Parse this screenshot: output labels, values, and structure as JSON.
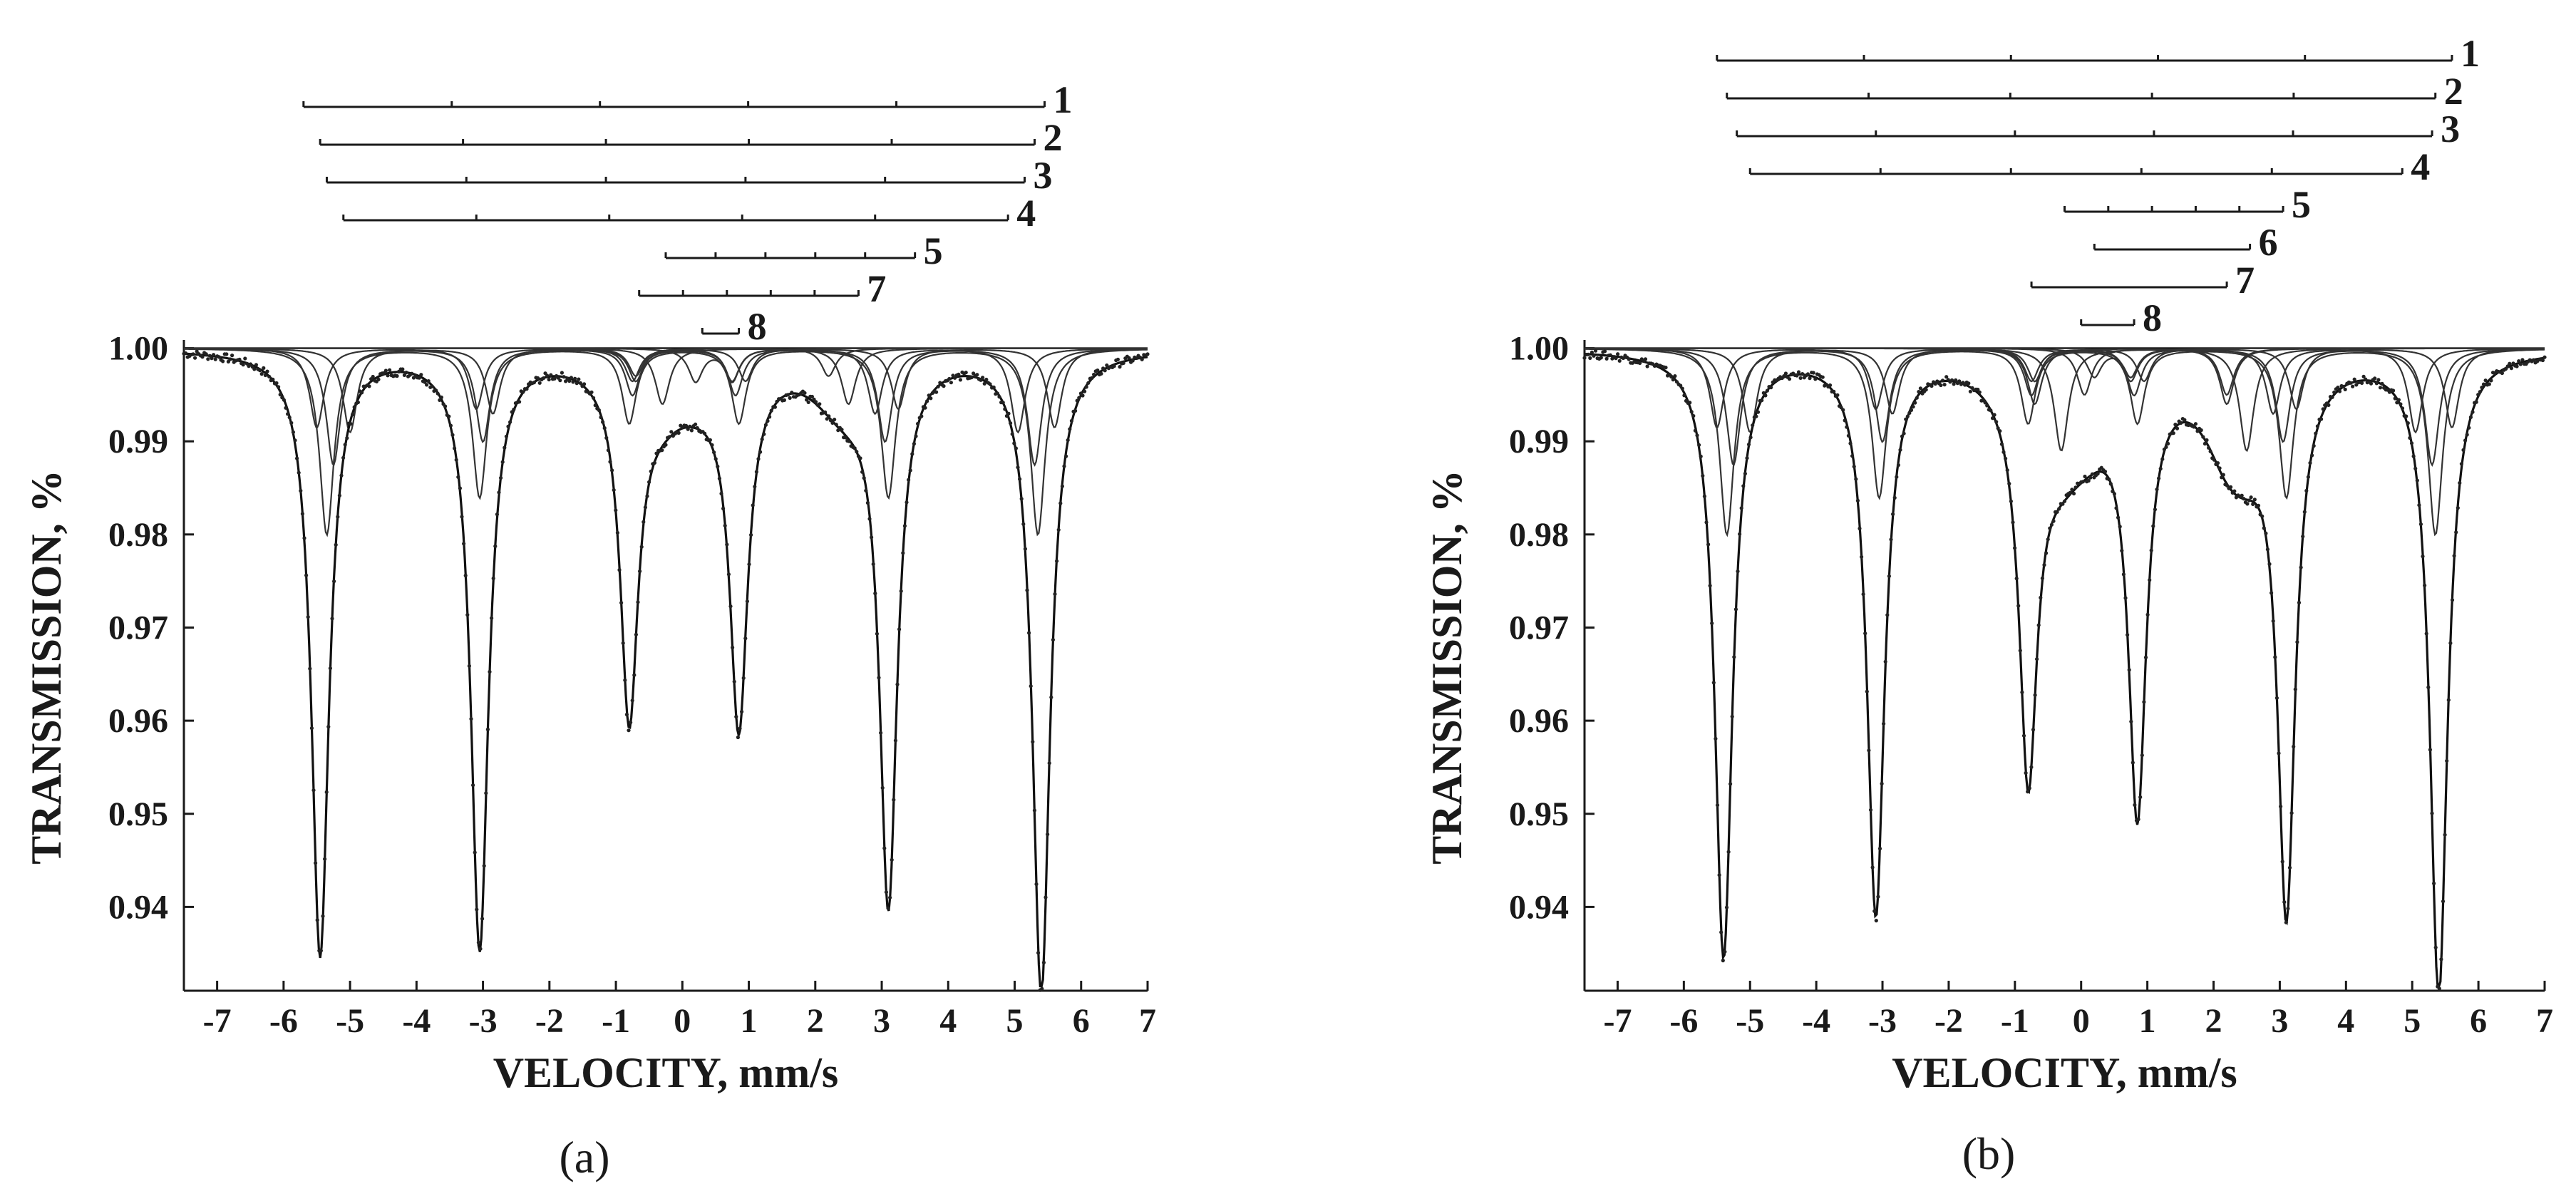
{
  "chart_data": [
    {
      "panel_label": "(a)",
      "type": "line",
      "xlabel": "VELOCITY, mm/s",
      "ylabel": "TRANSMISSION, %",
      "xlim": [
        -7.5,
        7
      ],
      "ylim": [
        0.931,
        1.0005
      ],
      "x_ticks": [
        -7,
        -6,
        -5,
        -4,
        -3,
        -2,
        -1,
        0,
        1,
        2,
        3,
        4,
        5,
        6,
        7
      ],
      "x_tick_labels": [
        "-7",
        "-6",
        "-5",
        "-4",
        "-3",
        "-2",
        "-1",
        "0",
        "1",
        "2",
        "3",
        "4",
        "5",
        "6",
        "7"
      ],
      "y_ticks": [
        0.94,
        0.95,
        0.96,
        0.97,
        0.98,
        0.99,
        1.0
      ],
      "y_tick_labels": [
        "0.94",
        "0.95",
        "0.96",
        "0.97",
        "0.98",
        "0.99",
        "1.00"
      ],
      "grid": false,
      "legend": "none",
      "envelope_minima": [
        {
          "x": -5.45,
          "y": 0.935
        },
        {
          "x": -3.05,
          "y": 0.936
        },
        {
          "x": -0.8,
          "y": 0.964
        },
        {
          "x": 0.85,
          "y": 0.963
        },
        {
          "x": 3.1,
          "y": 0.942
        },
        {
          "x": 5.4,
          "y": 0.931
        }
      ],
      "components": [
        {
          "label": "1",
          "lines": [
            {
              "x": -5.5,
              "depth": 0.0085
            },
            {
              "x": -3.1,
              "depth": 0.0065
            },
            {
              "x": -0.75,
              "depth": 0.0035
            },
            {
              "x": 0.95,
              "depth": 0.0035
            },
            {
              "x": 3.25,
              "depth": 0.0065
            },
            {
              "x": 5.6,
              "depth": 0.0085
            }
          ]
        },
        {
          "label": "2",
          "lines": [
            {
              "x": -5.35,
              "depth": 0.02
            },
            {
              "x": -3.05,
              "depth": 0.016
            },
            {
              "x": -0.8,
              "depth": 0.008
            },
            {
              "x": 0.85,
              "depth": 0.008
            },
            {
              "x": 3.1,
              "depth": 0.016
            },
            {
              "x": 5.35,
              "depth": 0.02
            }
          ]
        },
        {
          "label": "3",
          "lines": [
            {
              "x": -5.25,
              "depth": 0.0125
            },
            {
              "x": -3.0,
              "depth": 0.01
            },
            {
              "x": -0.75,
              "depth": 0.005
            },
            {
              "x": 0.8,
              "depth": 0.005
            },
            {
              "x": 3.05,
              "depth": 0.01
            },
            {
              "x": 5.3,
              "depth": 0.0125
            }
          ]
        },
        {
          "label": "4",
          "lines": [
            {
              "x": -5.0,
              "depth": 0.009
            },
            {
              "x": -2.85,
              "depth": 0.007
            },
            {
              "x": -0.7,
              "depth": 0.0035
            },
            {
              "x": 0.75,
              "depth": 0.0035
            },
            {
              "x": 2.9,
              "depth": 0.007
            },
            {
              "x": 5.05,
              "depth": 0.009
            }
          ]
        },
        {
          "label": "5",
          "lines": [
            {
              "x": -0.3,
              "depth": 0.006
            },
            {
              "x": 2.5,
              "depth": 0.006
            }
          ]
        },
        {
          "label": "7",
          "lines": [
            {
              "x": -0.7,
              "depth": 0.003
            },
            {
              "x": 2.2,
              "depth": 0.003
            }
          ]
        },
        {
          "label": "8",
          "lines": [
            {
              "x": 0.2,
              "depth": 0.0035
            },
            {
              "x": 0.75,
              "depth": 0.0035
            }
          ]
        }
      ],
      "stick_diagrams": [
        {
          "label": "1",
          "x_start": -5.7,
          "x_end": 5.45
        },
        {
          "label": "2",
          "x_start": -5.45,
          "x_end": 5.3
        },
        {
          "label": "3",
          "x_start": -5.35,
          "x_end": 5.15
        },
        {
          "label": "4",
          "x_start": -5.1,
          "x_end": 4.9
        },
        {
          "label": "5",
          "x_start": -0.25,
          "x_end": 3.5
        },
        {
          "label": "7",
          "x_start": -0.65,
          "x_end": 2.65
        },
        {
          "label": "8",
          "x_start": 0.3,
          "x_end": 0.85
        }
      ]
    },
    {
      "panel_label": "(b)",
      "type": "line",
      "xlabel": "VELOCITY, mm/s",
      "ylabel": "TRANSMISSION, %",
      "xlim": [
        -7.5,
        7
      ],
      "ylim": [
        0.931,
        1.0005
      ],
      "x_ticks": [
        -7,
        -6,
        -5,
        -4,
        -3,
        -2,
        -1,
        0,
        1,
        2,
        3,
        4,
        5,
        6,
        7
      ],
      "x_tick_labels": [
        "-7",
        "-6",
        "-5",
        "-4",
        "-3",
        "-2",
        "-1",
        "0",
        "1",
        "2",
        "3",
        "4",
        "5",
        "6",
        "7"
      ],
      "y_ticks": [
        0.94,
        0.95,
        0.96,
        0.97,
        0.98,
        0.99,
        1.0
      ],
      "y_tick_labels": [
        "0.94",
        "0.95",
        "0.96",
        "0.97",
        "0.98",
        "0.99",
        "1.00"
      ],
      "grid": false,
      "legend": "none",
      "envelope_minima": [
        {
          "x": -5.4,
          "y": 0.935
        },
        {
          "x": -3.1,
          "y": 0.94
        },
        {
          "x": -0.8,
          "y": 0.961
        },
        {
          "x": 0.85,
          "y": 0.955
        },
        {
          "x": 3.1,
          "y": 0.943
        },
        {
          "x": 5.4,
          "y": 0.931
        }
      ],
      "components": [
        {
          "label": "1",
          "lines": [
            {
              "x": -5.5,
              "depth": 0.0085
            },
            {
              "x": -3.1,
              "depth": 0.0065
            },
            {
              "x": -0.75,
              "depth": 0.0035
            },
            {
              "x": 0.95,
              "depth": 0.0035
            },
            {
              "x": 3.25,
              "depth": 0.0065
            },
            {
              "x": 5.6,
              "depth": 0.0085
            }
          ]
        },
        {
          "label": "2",
          "lines": [
            {
              "x": -5.35,
              "depth": 0.02
            },
            {
              "x": -3.05,
              "depth": 0.016
            },
            {
              "x": -0.8,
              "depth": 0.008
            },
            {
              "x": 0.85,
              "depth": 0.008
            },
            {
              "x": 3.1,
              "depth": 0.016
            },
            {
              "x": 5.35,
              "depth": 0.02
            }
          ]
        },
        {
          "label": "3",
          "lines": [
            {
              "x": -5.25,
              "depth": 0.0125
            },
            {
              "x": -3.0,
              "depth": 0.01
            },
            {
              "x": -0.75,
              "depth": 0.005
            },
            {
              "x": 0.8,
              "depth": 0.005
            },
            {
              "x": 3.05,
              "depth": 0.01
            },
            {
              "x": 5.3,
              "depth": 0.0125
            }
          ]
        },
        {
          "label": "4",
          "lines": [
            {
              "x": -5.0,
              "depth": 0.009
            },
            {
              "x": -2.85,
              "depth": 0.007
            },
            {
              "x": -0.7,
              "depth": 0.0035
            },
            {
              "x": 0.75,
              "depth": 0.0035
            },
            {
              "x": 2.9,
              "depth": 0.007
            },
            {
              "x": 5.05,
              "depth": 0.009
            }
          ]
        },
        {
          "label": "5",
          "lines": [
            {
              "x": -0.3,
              "depth": 0.011
            },
            {
              "x": 2.5,
              "depth": 0.011
            }
          ]
        },
        {
          "label": "6",
          "lines": [
            {
              "x": 0.05,
              "depth": 0.005
            },
            {
              "x": 2.2,
              "depth": 0.005
            }
          ]
        },
        {
          "label": "7",
          "lines": [
            {
              "x": -0.7,
              "depth": 0.006
            },
            {
              "x": 2.2,
              "depth": 0.006
            }
          ]
        },
        {
          "label": "8",
          "lines": [
            {
              "x": 0.2,
              "depth": 0.003
            },
            {
              "x": 0.75,
              "depth": 0.003
            }
          ]
        }
      ],
      "stick_diagrams": [
        {
          "label": "1",
          "x_start": -5.5,
          "x_end": 5.6
        },
        {
          "label": "2",
          "x_start": -5.35,
          "x_end": 5.35
        },
        {
          "label": "3",
          "x_start": -5.2,
          "x_end": 5.3
        },
        {
          "label": "4",
          "x_start": -5.0,
          "x_end": 4.85
        },
        {
          "label": "5",
          "x_start": -0.25,
          "x_end": 3.05
        },
        {
          "label": "6",
          "x_start": 0.2,
          "x_end": 2.55
        },
        {
          "label": "7",
          "x_start": -0.75,
          "x_end": 2.2
        },
        {
          "label": "8",
          "x_start": 0.0,
          "x_end": 0.8
        }
      ]
    }
  ]
}
